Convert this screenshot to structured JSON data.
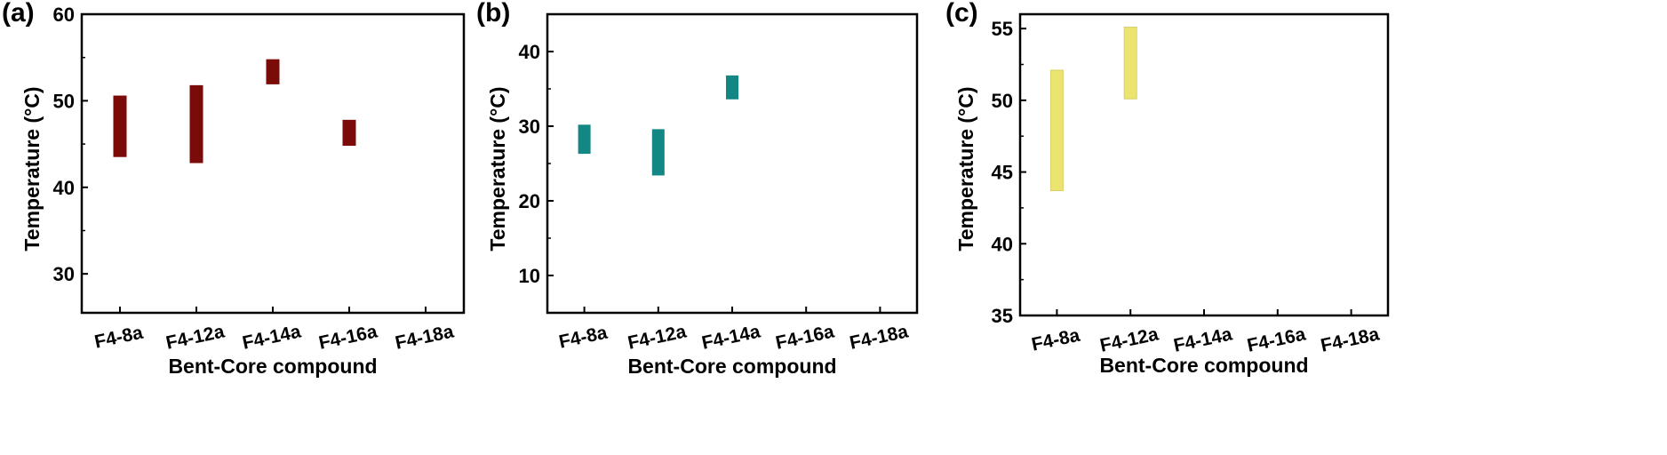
{
  "figure": {
    "xlabel": "Bent-Core compound",
    "ylabel": "Temperature (°C)"
  },
  "chart_data": [
    {
      "type": "bar",
      "panel": "(a)",
      "title": "",
      "xlabel": "Bent-Core compound",
      "ylabel": "Temperature (°C)",
      "categories": [
        "F4-8a",
        "F4-12a",
        "F4-14a",
        "F4-16a",
        "F4-18a"
      ],
      "ranges": [
        [
          43.5,
          50.6
        ],
        [
          42.8,
          51.8
        ],
        [
          51.9,
          54.8
        ],
        [
          44.8,
          47.8
        ],
        null
      ],
      "ylim": [
        25.5,
        60
      ],
      "yticks": [
        30,
        40,
        50,
        60
      ],
      "color": "#7b0b08",
      "grid": false
    },
    {
      "type": "bar",
      "panel": "(b)",
      "title": "",
      "xlabel": "Bent-Core compound",
      "ylabel": "Temperature (°C)",
      "categories": [
        "F4-8a",
        "F4-12a",
        "F4-14a",
        "F4-16a",
        "F4-18a"
      ],
      "ranges": [
        [
          26.3,
          30.2
        ],
        [
          23.4,
          29.6
        ],
        [
          33.6,
          36.8
        ],
        null,
        null
      ],
      "ylim": [
        5,
        45
      ],
      "yticks": [
        10,
        20,
        30,
        40
      ],
      "color": "#138784",
      "grid": false
    },
    {
      "type": "bar",
      "panel": "(c)",
      "title": "",
      "xlabel": "Bent-Core compound",
      "ylabel": "Temperature (°C)",
      "categories": [
        "F4-8a",
        "F4-12a",
        "F4-14a",
        "F4-16a",
        "F4-18a"
      ],
      "ranges": [
        [
          43.7,
          52.1
        ],
        [
          50.1,
          55.1
        ],
        null,
        null,
        null
      ],
      "ylim": [
        35,
        56
      ],
      "yticks": [
        35,
        40,
        45,
        50,
        55
      ],
      "color": "#ebe46f",
      "grid": false
    }
  ]
}
